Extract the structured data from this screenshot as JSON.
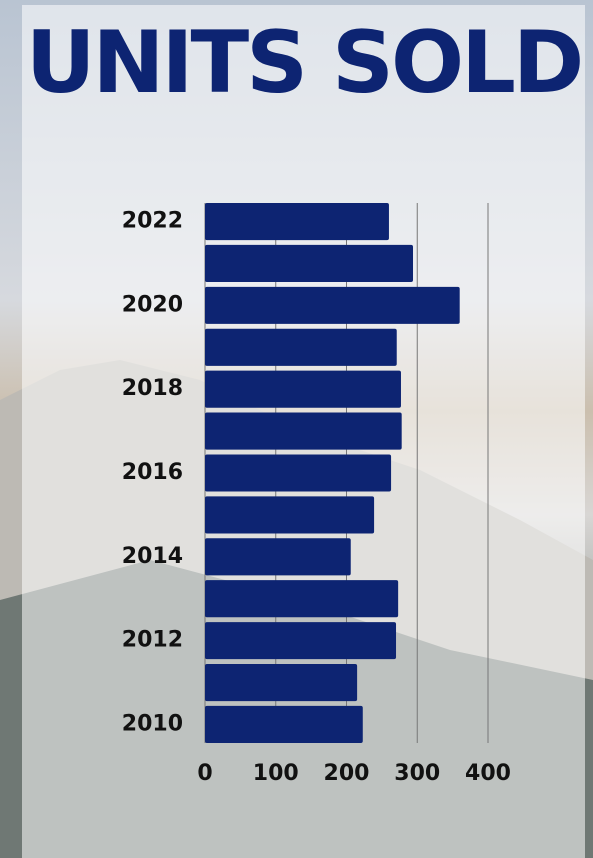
{
  "chart_data": {
    "type": "bar",
    "orientation": "horizontal",
    "title": "UNITS SOLD",
    "categories": [
      "2022",
      null,
      "2020",
      null,
      "2018",
      null,
      "2016",
      null,
      "2014",
      null,
      "2012",
      null,
      "2010"
    ],
    "values": [
      260,
      294,
      360,
      271,
      277,
      278,
      263,
      239,
      206,
      273,
      270,
      215,
      223
    ],
    "color": "#0d2472",
    "xlim": [
      0,
      400
    ],
    "xticks": [
      0,
      100,
      200,
      300,
      400
    ],
    "grid": true
  }
}
